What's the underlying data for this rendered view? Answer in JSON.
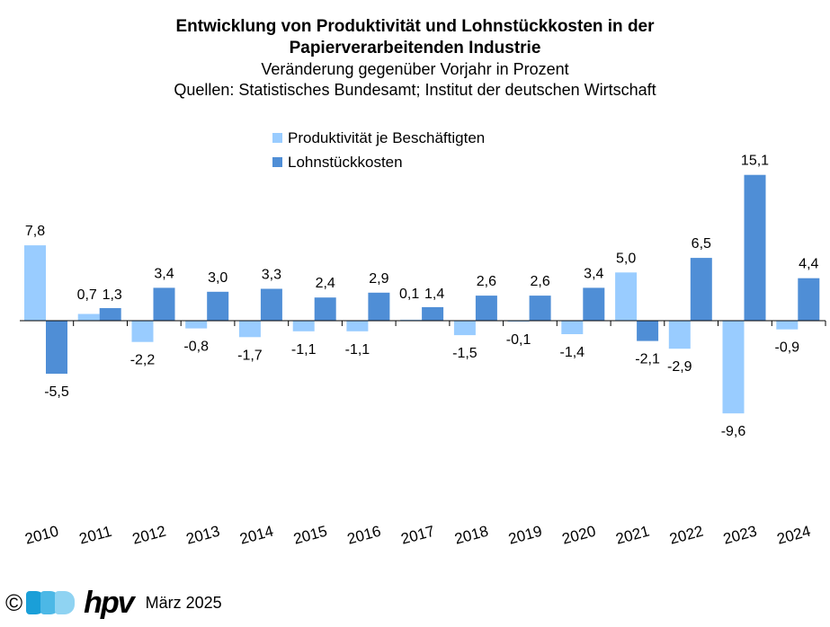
{
  "title_lines": [
    "Entwicklung von Produktivität und Lohnstückkosten in der",
    "Papierverarbeitenden Industrie"
  ],
  "subtitle": "Veränderung gegenüber Vorjahr in Prozent",
  "source": "Quellen: Statistisches Bundesamt; Institut der deutschen Wirtschaft",
  "footer": {
    "copyright": "©",
    "logo_text": "hpv",
    "date": "März 2025"
  },
  "colors": {
    "produktivitaet": "#99CCFF",
    "lohnstueckkosten": "#4F8ED6",
    "logo_dots": [
      "#1A9FD8",
      "#4CB8E6",
      "#8FD3F2"
    ]
  },
  "chart_data": {
    "type": "bar",
    "title": "Entwicklung von Produktivität und Lohnstückkosten in der Papierverarbeitenden Industrie",
    "subtitle": "Veränderung gegenüber Vorjahr in Prozent",
    "categories": [
      "2010",
      "2011",
      "2012",
      "2013",
      "2014",
      "2015",
      "2016",
      "2017",
      "2018",
      "2019",
      "2020",
      "2021",
      "2022",
      "2023",
      "2024"
    ],
    "series": [
      {
        "name": "Produktivität je Beschäftigten",
        "values": [
          7.8,
          0.7,
          -2.2,
          -0.8,
          -1.7,
          -1.1,
          -1.1,
          0.1,
          -1.5,
          -0.1,
          -1.4,
          5.0,
          -2.9,
          -9.6,
          -0.9
        ],
        "labels": [
          "7,8",
          "0,7",
          "-2,2",
          "-0,8",
          "-1,7",
          "-1,1",
          "-1,1",
          "0,1",
          "-1,5",
          "-0,1",
          "-1,4",
          "5,0",
          "-2,9",
          "-9,6",
          "-0,9"
        ]
      },
      {
        "name": "Lohnstückkosten",
        "values": [
          -5.5,
          1.3,
          3.4,
          3.0,
          3.3,
          2.4,
          2.9,
          1.4,
          2.6,
          2.6,
          3.4,
          -2.1,
          6.5,
          15.1,
          4.4
        ],
        "labels": [
          "-5,5",
          "1,3",
          "3,4",
          "3,0",
          "3,3",
          "2,4",
          "2,9",
          "1,4",
          "2,6",
          "2,6",
          "3,4",
          "-2,1",
          "6,5",
          "15,1",
          "4,4"
        ]
      }
    ],
    "xlabel": "",
    "ylabel": "",
    "ylim": [
      -12,
      18
    ],
    "grid": false,
    "legend": "top-center"
  }
}
